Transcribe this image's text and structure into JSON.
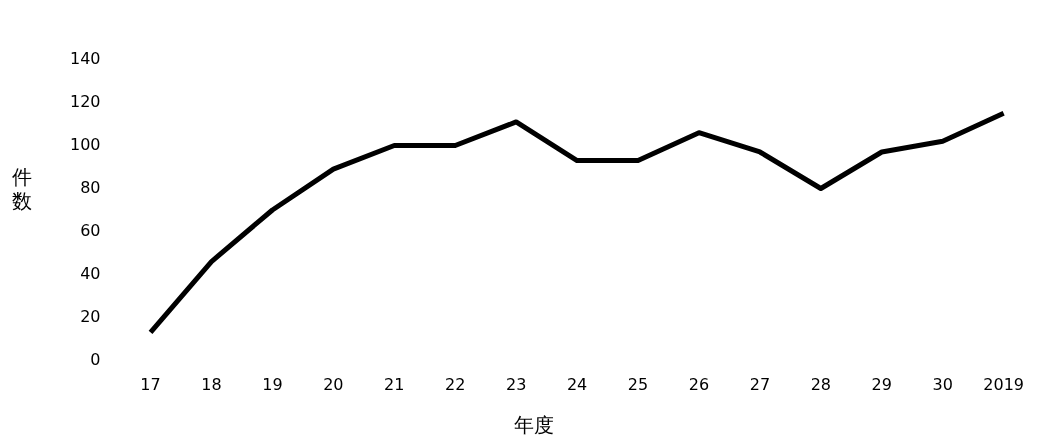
{
  "chart_data": {
    "type": "line",
    "xlabel": "年度",
    "ylabel": "件数",
    "categories": [
      "17",
      "18",
      "19",
      "20",
      "21",
      "22",
      "23",
      "24",
      "25",
      "26",
      "27",
      "28",
      "29",
      "30",
      "2019"
    ],
    "series": [
      {
        "color": "#000000",
        "values": [
          13,
          46,
          70,
          89,
          100,
          100,
          111,
          93,
          93,
          106,
          97,
          80,
          97,
          102,
          115
        ]
      }
    ],
    "ylim": [
      0,
      140
    ],
    "yticks": [
      0,
      20,
      40,
      60,
      80,
      100,
      120,
      140
    ],
    "grid": false,
    "legend": false,
    "marker": "none",
    "line_style": "solid"
  }
}
